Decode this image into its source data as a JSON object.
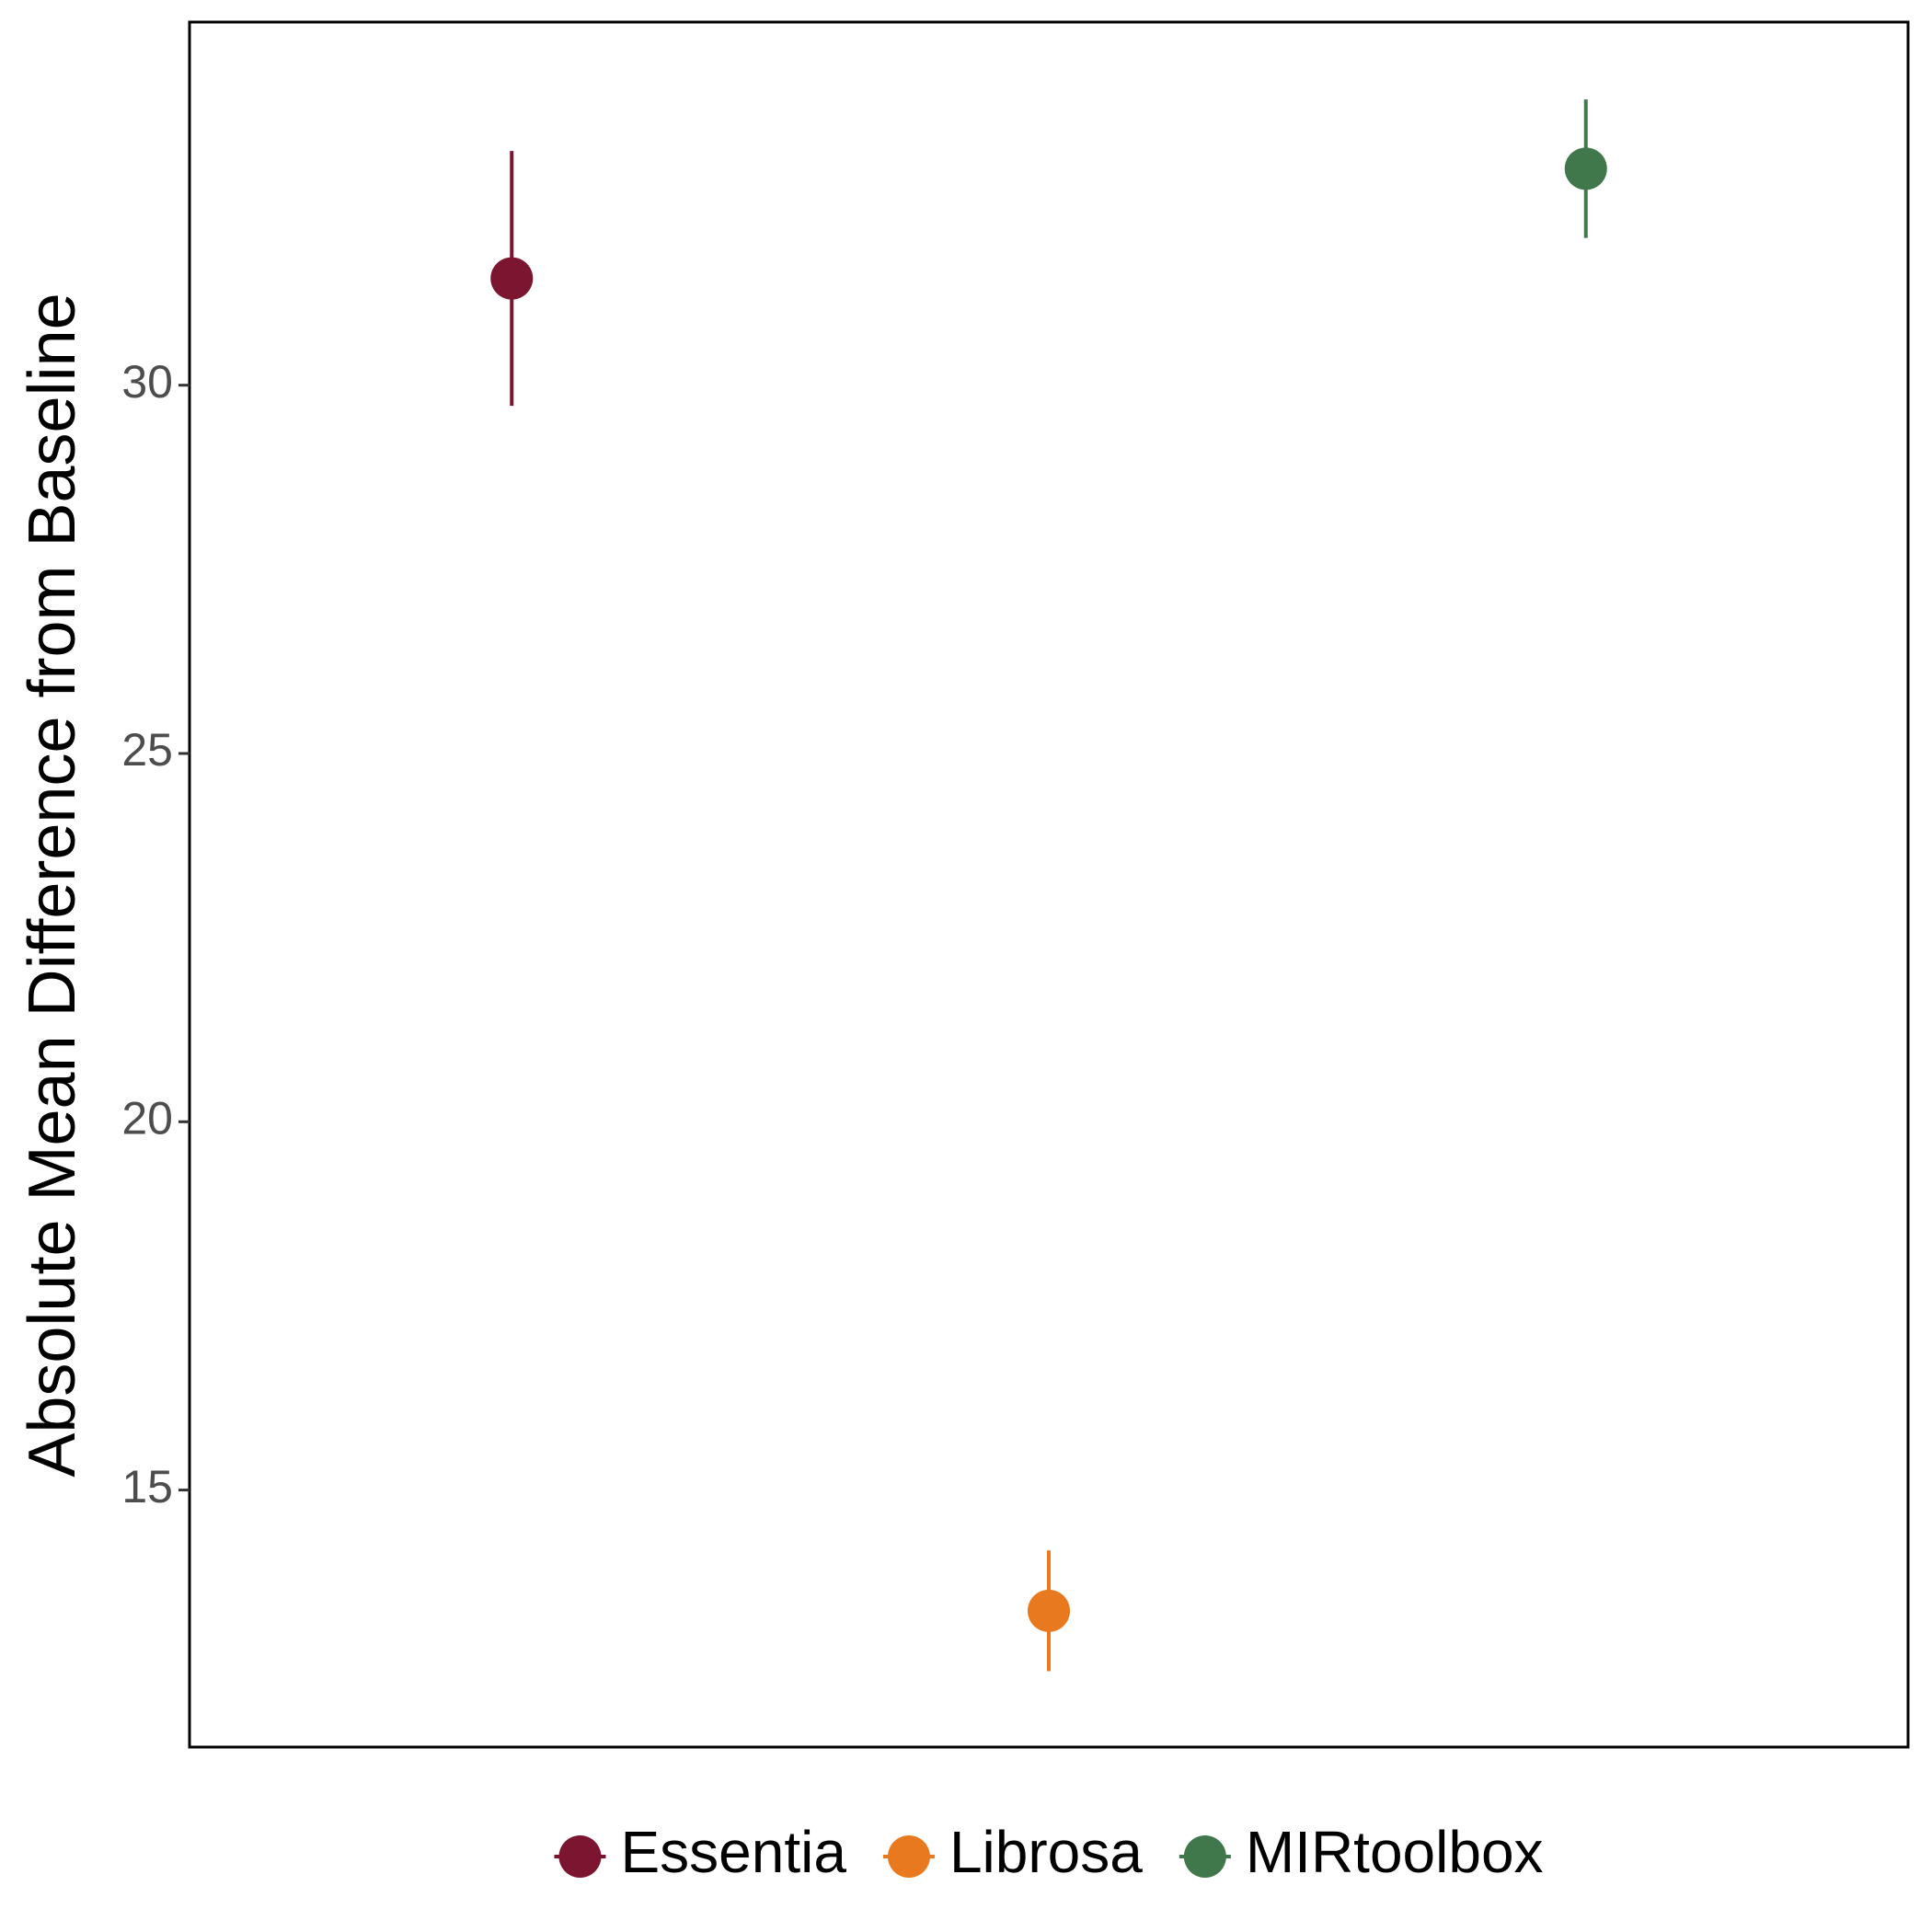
{
  "chart_data": {
    "type": "errorbar",
    "y_label": "Absolute Mean Difference from Baseline",
    "series": [
      {
        "name": "Essentia",
        "color": "#7b1530",
        "values": [
          31.45
        ],
        "errors": [
          1.73
        ]
      },
      {
        "name": "Librosa",
        "color": "#e8791e",
        "values": [
          13.36
        ],
        "errors": [
          0.82
        ]
      },
      {
        "name": "MIRtoolbox",
        "color": "#41784b",
        "values": [
          32.94
        ],
        "errors": [
          0.94
        ]
      }
    ],
    "ylim": [
      11.51,
      34.93
    ],
    "yticks": [
      15,
      20,
      25,
      30
    ],
    "grid": false,
    "legend": "bottom"
  }
}
